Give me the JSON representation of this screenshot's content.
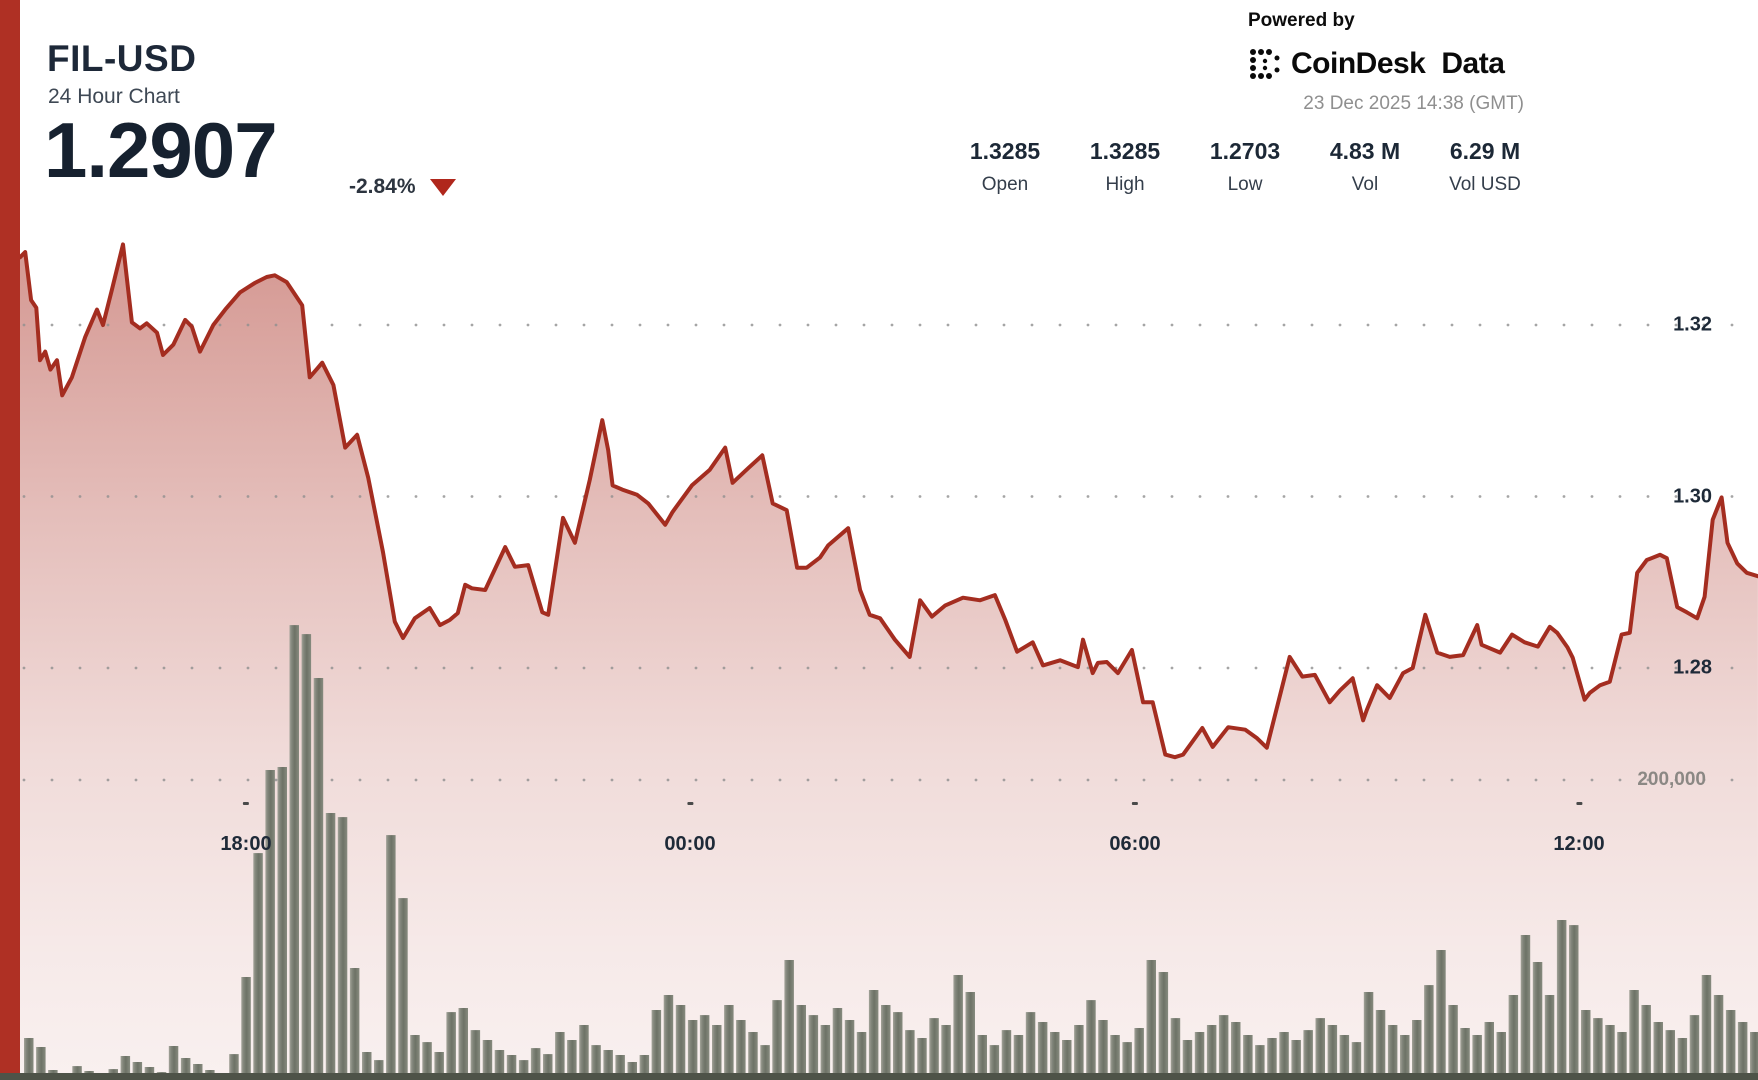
{
  "header": {
    "symbol": "FIL-USD",
    "subtitle": "24 Hour Chart",
    "price": "1.2907",
    "change_pct": "-2.84%",
    "change_direction": "down"
  },
  "attribution": {
    "powered_by": "Powered by",
    "brand": "CoinDesk",
    "brand_suffix": "Data",
    "timestamp": "23 Dec 2025 14:38 (GMT)"
  },
  "stats": [
    {
      "value": "1.3285",
      "label": "Open"
    },
    {
      "value": "1.3285",
      "label": "High"
    },
    {
      "value": "1.2703",
      "label": "Low"
    },
    {
      "value": "4.83 M",
      "label": "Vol"
    },
    {
      "value": "6.29 M",
      "label": "Vol USD"
    }
  ],
  "colors": {
    "line_red": "#a42d20",
    "accent_bar_red": "#af3024",
    "fill_red": "#a82c20",
    "volume_bar": "#7a7e71",
    "grid_dot": "#8f8f8f",
    "baseline_band": "#4e5348",
    "text_dark": "#1c2836",
    "text_gray": "#8f8f8f"
  },
  "chart_data": {
    "type": "area",
    "title": "FIL-USD 24 Hour Chart",
    "subtitle_note": "price line with volume bars, 10-minute intervals",
    "x_axis": {
      "unit": "hours from chart start (start = 23 Dec 2025 ~14:40 GMT previous day window end 14:38 GMT)",
      "labels": [
        {
          "text": "18:00",
          "t": 3.05
        },
        {
          "text": "00:00",
          "t": 9.05
        },
        {
          "text": "06:00",
          "t": 15.05
        },
        {
          "text": "12:00",
          "t": 21.05
        }
      ],
      "span_hours": 23.46,
      "grid": "dotted"
    },
    "y_axis": {
      "side": "right",
      "price_labels": [
        {
          "text": "1.32",
          "price": 1.32
        },
        {
          "text": "1.30",
          "price": 1.3
        },
        {
          "text": "1.28",
          "price": 1.28
        }
      ],
      "volume_label": {
        "text": "200,000",
        "value": 200000
      },
      "price_range_visible": [
        1.268,
        1.333
      ]
    },
    "open": 1.3285,
    "high": 1.3285,
    "low": 1.2703,
    "last": 1.2907,
    "price_series": [
      [
        0,
        1.3279
      ],
      [
        0.07,
        1.3285
      ],
      [
        0.15,
        1.3229
      ],
      [
        0.22,
        1.322
      ],
      [
        0.27,
        1.3159
      ],
      [
        0.34,
        1.3169
      ],
      [
        0.41,
        1.3148
      ],
      [
        0.5,
        1.3159
      ],
      [
        0.57,
        1.3118
      ],
      [
        0.7,
        1.3139
      ],
      [
        0.88,
        1.3186
      ],
      [
        1.04,
        1.3218
      ],
      [
        1.12,
        1.32
      ],
      [
        1.24,
        1.3241
      ],
      [
        1.39,
        1.3294
      ],
      [
        1.51,
        1.3203
      ],
      [
        1.62,
        1.3196
      ],
      [
        1.71,
        1.3202
      ],
      [
        1.85,
        1.3191
      ],
      [
        1.93,
        1.3165
      ],
      [
        2.07,
        1.3177
      ],
      [
        2.23,
        1.3206
      ],
      [
        2.32,
        1.3198
      ],
      [
        2.43,
        1.3169
      ],
      [
        2.61,
        1.32
      ],
      [
        2.77,
        1.3218
      ],
      [
        2.97,
        1.3238
      ],
      [
        3.17,
        1.3249
      ],
      [
        3.33,
        1.3256
      ],
      [
        3.44,
        1.3258
      ],
      [
        3.6,
        1.325
      ],
      [
        3.81,
        1.3223
      ],
      [
        3.91,
        1.3139
      ],
      [
        4.02,
        1.315
      ],
      [
        4.08,
        1.3156
      ],
      [
        4.23,
        1.313
      ],
      [
        4.39,
        1.3057
      ],
      [
        4.55,
        1.3072
      ],
      [
        4.7,
        1.3022
      ],
      [
        4.9,
        1.2935
      ],
      [
        5.06,
        1.2854
      ],
      [
        5.17,
        1.2835
      ],
      [
        5.33,
        1.2858
      ],
      [
        5.53,
        1.287
      ],
      [
        5.67,
        1.285
      ],
      [
        5.8,
        1.2856
      ],
      [
        5.91,
        1.2864
      ],
      [
        6.01,
        1.2897
      ],
      [
        6.1,
        1.2893
      ],
      [
        6.28,
        1.2891
      ],
      [
        6.55,
        1.2941
      ],
      [
        6.68,
        1.2918
      ],
      [
        6.86,
        1.292
      ],
      [
        7.05,
        1.2865
      ],
      [
        7.13,
        1.2862
      ],
      [
        7.33,
        1.2975
      ],
      [
        7.49,
        1.2946
      ],
      [
        7.69,
        1.3019
      ],
      [
        7.86,
        1.3089
      ],
      [
        7.94,
        1.3054
      ],
      [
        8,
        1.3013
      ],
      [
        8.13,
        1.3008
      ],
      [
        8.33,
        1.3002
      ],
      [
        8.48,
        1.2992
      ],
      [
        8.71,
        1.2967
      ],
      [
        8.81,
        1.2982
      ],
      [
        9.07,
        1.3013
      ],
      [
        9.31,
        1.3031
      ],
      [
        9.52,
        1.3057
      ],
      [
        9.62,
        1.3016
      ],
      [
        9.83,
        1.3033
      ],
      [
        10.02,
        1.3048
      ],
      [
        10.16,
        1.2992
      ],
      [
        10.35,
        1.2984
      ],
      [
        10.49,
        1.2917
      ],
      [
        10.62,
        1.2917
      ],
      [
        10.8,
        1.2929
      ],
      [
        10.91,
        1.2943
      ],
      [
        11.18,
        1.2963
      ],
      [
        11.34,
        1.2891
      ],
      [
        11.47,
        1.2862
      ],
      [
        11.61,
        1.2858
      ],
      [
        11.81,
        1.2833
      ],
      [
        12.01,
        1.2813
      ],
      [
        12.15,
        1.2879
      ],
      [
        12.31,
        1.286
      ],
      [
        12.49,
        1.2873
      ],
      [
        12.73,
        1.2882
      ],
      [
        12.96,
        1.2879
      ],
      [
        13.16,
        1.2885
      ],
      [
        13.3,
        1.2856
      ],
      [
        13.46,
        1.2819
      ],
      [
        13.67,
        1.283
      ],
      [
        13.81,
        1.2803
      ],
      [
        14.04,
        1.2809
      ],
      [
        14.28,
        1.2801
      ],
      [
        14.35,
        1.2833
      ],
      [
        14.48,
        1.2794
      ],
      [
        14.55,
        1.2806
      ],
      [
        14.67,
        1.2807
      ],
      [
        14.82,
        1.2794
      ],
      [
        15.01,
        1.2821
      ],
      [
        15.16,
        1.276
      ],
      [
        15.29,
        1.276
      ],
      [
        15.46,
        1.2699
      ],
      [
        15.59,
        1.2696
      ],
      [
        15.7,
        1.2699
      ],
      [
        15.96,
        1.273
      ],
      [
        16.1,
        1.2708
      ],
      [
        16.31,
        1.2731
      ],
      [
        16.54,
        1.2728
      ],
      [
        16.7,
        1.2718
      ],
      [
        16.83,
        1.2707
      ],
      [
        17.14,
        1.2813
      ],
      [
        17.31,
        1.279
      ],
      [
        17.48,
        1.2792
      ],
      [
        17.68,
        1.276
      ],
      [
        17.82,
        1.2774
      ],
      [
        17.99,
        1.2788
      ],
      [
        18.13,
        1.2739
      ],
      [
        18.18,
        1.2751
      ],
      [
        18.32,
        1.278
      ],
      [
        18.49,
        1.2765
      ],
      [
        18.67,
        1.2794
      ],
      [
        18.8,
        1.28
      ],
      [
        18.97,
        1.2862
      ],
      [
        19.13,
        1.2818
      ],
      [
        19.3,
        1.2813
      ],
      [
        19.48,
        1.2815
      ],
      [
        19.67,
        1.285
      ],
      [
        19.73,
        1.2827
      ],
      [
        19.98,
        1.2818
      ],
      [
        20.14,
        1.2839
      ],
      [
        20.31,
        1.283
      ],
      [
        20.49,
        1.2825
      ],
      [
        20.65,
        1.2848
      ],
      [
        20.75,
        1.2841
      ],
      [
        20.89,
        1.2824
      ],
      [
        20.96,
        1.2812
      ],
      [
        21.12,
        1.2763
      ],
      [
        21.19,
        1.2771
      ],
      [
        21.33,
        1.278
      ],
      [
        21.46,
        1.2784
      ],
      [
        21.62,
        1.2839
      ],
      [
        21.73,
        1.2841
      ],
      [
        21.83,
        1.2911
      ],
      [
        21.96,
        1.2926
      ],
      [
        22.14,
        1.2932
      ],
      [
        22.23,
        1.2928
      ],
      [
        22.37,
        1.2871
      ],
      [
        22.5,
        1.2865
      ],
      [
        22.64,
        1.2858
      ],
      [
        22.74,
        1.2883
      ],
      [
        22.85,
        1.2973
      ],
      [
        22.97,
        1.2999
      ],
      [
        23.05,
        1.2946
      ],
      [
        23.18,
        1.2922
      ],
      [
        23.31,
        1.2911
      ],
      [
        23.46,
        1.2907
      ]
    ],
    "volume_series": [
      28000,
      22000,
      6700,
      4700,
      9300,
      6000,
      3300,
      7300,
      16000,
      12000,
      8700,
      5300,
      22700,
      14700,
      10700,
      6700,
      4700,
      17300,
      68700,
      151300,
      206700,
      208700,
      303300,
      297300,
      268000,
      178000,
      175300,
      74700,
      18700,
      13300,
      163300,
      121300,
      30000,
      25300,
      18700,
      45300,
      48000,
      33300,
      26700,
      20000,
      16700,
      13300,
      21300,
      17300,
      32000,
      26700,
      36700,
      23300,
      20000,
      16700,
      12000,
      16700,
      46700,
      56700,
      50000,
      40000,
      43300,
      36700,
      50000,
      40000,
      32000,
      23300,
      53300,
      80000,
      50000,
      43300,
      36700,
      48000,
      40000,
      32000,
      60000,
      50000,
      45300,
      33300,
      28000,
      41300,
      36700,
      70000,
      58700,
      30000,
      23300,
      33300,
      30000,
      45300,
      38700,
      32000,
      26700,
      36700,
      53300,
      40000,
      30000,
      25300,
      34700,
      80000,
      72000,
      41300,
      26700,
      32000,
      36700,
      43300,
      38700,
      30000,
      23300,
      28000,
      32000,
      26700,
      33300,
      41300,
      36700,
      30000,
      25300,
      58700,
      46700,
      36700,
      30000,
      40000,
      63300,
      86700,
      50000,
      34700,
      30000,
      38700,
      32000,
      56700,
      96700,
      78700,
      56700,
      106700,
      103300,
      46700,
      41300,
      36700,
      32000,
      60000,
      50000,
      38700,
      33300,
      28000,
      43300,
      70000,
      56700,
      46700,
      38700,
      32000
    ]
  }
}
